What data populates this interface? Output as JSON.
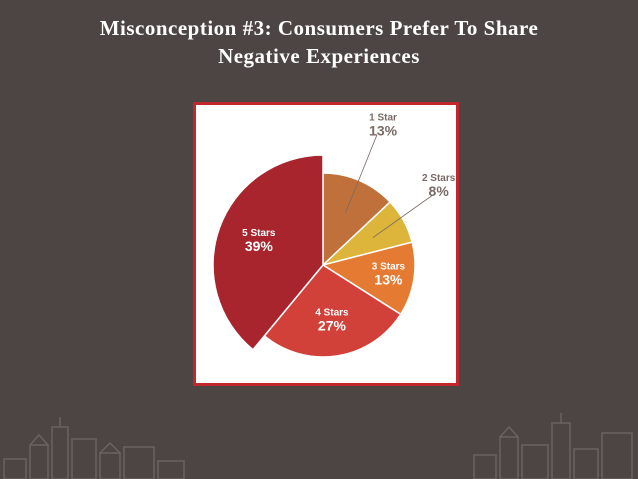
{
  "slide": {
    "title_line1": "Misconception #3: Consumers Prefer To Share",
    "title_line2": "Negative Experiences"
  },
  "chart_data": {
    "type": "pie",
    "title": "",
    "slices": [
      {
        "label": "1 Star",
        "value": 13,
        "display": "13%",
        "color": "#c0703a"
      },
      {
        "label": "2 Stars",
        "value": 8,
        "display": "8%",
        "color": "#ddb53a"
      },
      {
        "label": "3 Stars",
        "value": 13,
        "display": "13%",
        "color": "#e57a33"
      },
      {
        "label": "4 Stars",
        "value": 27,
        "display": "27%",
        "color": "#d2403a"
      },
      {
        "label": "5 Stars",
        "value": 39,
        "display": "39%",
        "color": "#a8252e"
      }
    ],
    "legend": "none"
  },
  "colors": {
    "background": "#4d4543",
    "frame_border": "#c0272d",
    "skyline": "#6b6361"
  }
}
